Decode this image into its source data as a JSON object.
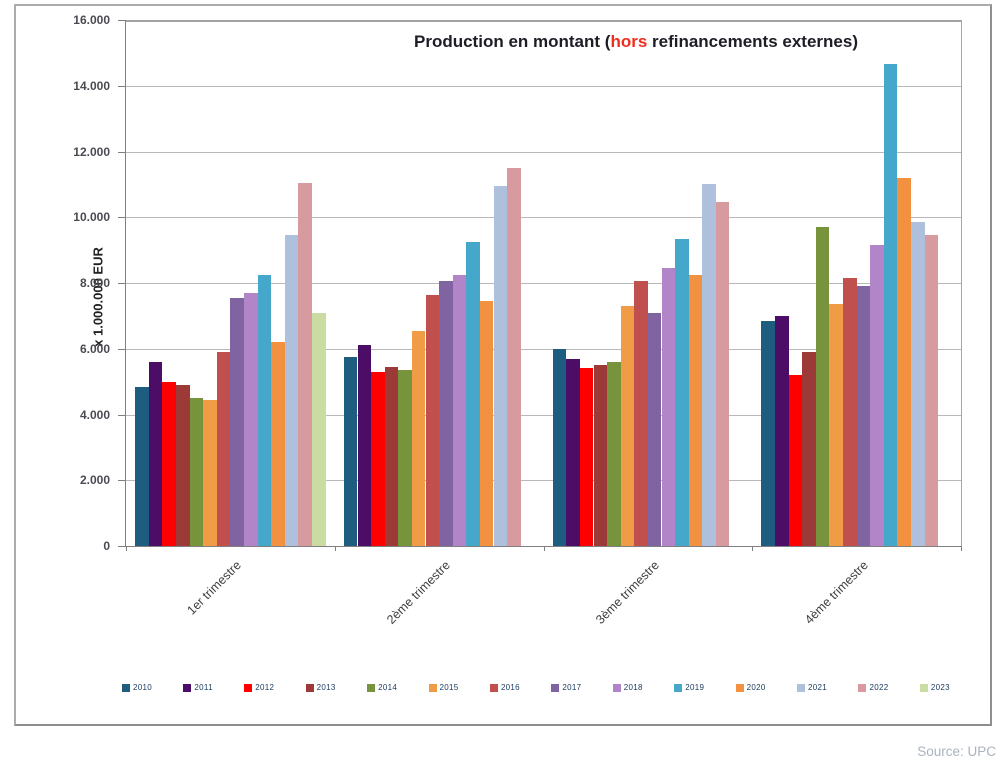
{
  "page": {
    "source_note": "Source: UPC"
  },
  "title": {
    "prefix": "Production en montant (",
    "highlight": "hors",
    "suffix": " refinancements externes)"
  },
  "chart_data": {
    "type": "bar",
    "title": "Production en montant (hors refinancements externes)",
    "ylabel": "x 1.000.000  EUR",
    "xlabel": "",
    "unit": "x 1.000.000 EUR",
    "grid": true,
    "legend_position": "bottom",
    "ylim": [
      0,
      16000
    ],
    "yticks": [
      {
        "value": 0,
        "label": "0"
      },
      {
        "value": 2000,
        "label": "2.000"
      },
      {
        "value": 4000,
        "label": "4.000"
      },
      {
        "value": 6000,
        "label": "6.000"
      },
      {
        "value": 8000,
        "label": "8.000"
      },
      {
        "value": 10000,
        "label": "10.000"
      },
      {
        "value": 12000,
        "label": "12.000"
      },
      {
        "value": 14000,
        "label": "14.000"
      },
      {
        "value": 16000,
        "label": "16.000"
      }
    ],
    "categories": [
      "1er trimestre",
      "2ème trimestre",
      "3ème trimestre",
      "4ème trimestre"
    ],
    "series": [
      {
        "name": "2010",
        "color": "#1E5C80",
        "values": [
          4850,
          5750,
          6000,
          6850
        ]
      },
      {
        "name": "2011",
        "color": "#4B0D66",
        "values": [
          5600,
          6100,
          5700,
          7000
        ]
      },
      {
        "name": "2012",
        "color": "#FE0000",
        "values": [
          5000,
          5300,
          5400,
          5200
        ]
      },
      {
        "name": "2013",
        "color": "#9C3A38",
        "values": [
          4900,
          5450,
          5500,
          5900
        ]
      },
      {
        "name": "2014",
        "color": "#77933C",
        "values": [
          4500,
          5350,
          5600,
          9700
        ]
      },
      {
        "name": "2015",
        "color": "#F09B46",
        "values": [
          4450,
          6550,
          7300,
          7350
        ]
      },
      {
        "name": "2016",
        "color": "#C0504D",
        "values": [
          5900,
          7650,
          8050,
          8150
        ]
      },
      {
        "name": "2017",
        "color": "#8064A2",
        "values": [
          7550,
          8050,
          7100,
          7900
        ]
      },
      {
        "name": "2018",
        "color": "#B284C8",
        "values": [
          7700,
          8250,
          8450,
          9150
        ]
      },
      {
        "name": "2019",
        "color": "#45A8CB",
        "values": [
          8250,
          9250,
          9350,
          14650
        ]
      },
      {
        "name": "2020",
        "color": "#F29140",
        "values": [
          6200,
          7450,
          8250,
          11200
        ]
      },
      {
        "name": "2021",
        "color": "#AFC0DD",
        "values": [
          9450,
          10950,
          11000,
          9850
        ]
      },
      {
        "name": "2022",
        "color": "#D79A9E",
        "values": [
          11050,
          11500,
          10450,
          9450
        ]
      },
      {
        "name": "2023",
        "color": "#CBDCA3",
        "values": [
          7100,
          null,
          null,
          null
        ]
      }
    ]
  }
}
